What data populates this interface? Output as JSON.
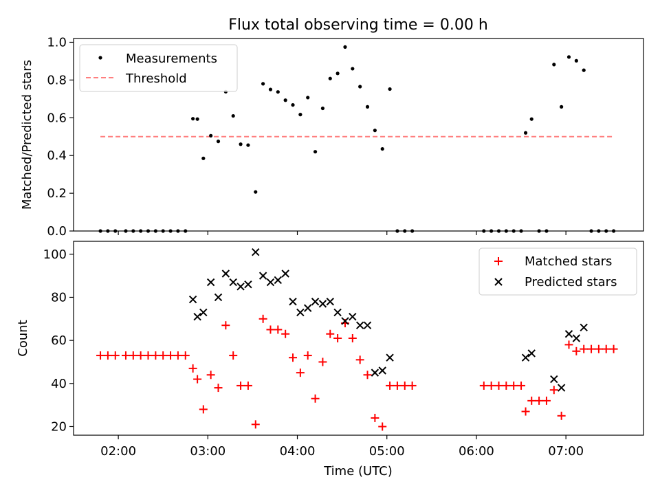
{
  "chart_data": [
    {
      "type": "scatter",
      "title": "Flux total observing time = 0.00 h",
      "xlabel": "",
      "ylabel": "Matched/Predicted stars",
      "x_is_time": true,
      "xlim": [
        "01:30",
        "07:52"
      ],
      "ylim": [
        0,
        1.02
      ],
      "yticks": [
        0,
        0.2,
        0.4,
        0.6,
        0.8,
        1.0
      ],
      "yticklabels": [
        "0.0",
        "0.2",
        "0.4",
        "0.6",
        "0.8",
        "1.0"
      ],
      "grid": false,
      "legend_position": "upper left",
      "series": [
        {
          "name": "Measurements",
          "marker": "dot",
          "color": "#000000",
          "points": [
            [
              "01:48",
              0.0
            ],
            [
              "01:53",
              0.0
            ],
            [
              "01:58",
              0.0
            ],
            [
              "02:05",
              0.0
            ],
            [
              "02:10",
              0.0
            ],
            [
              "02:15",
              0.0
            ],
            [
              "02:20",
              0.0
            ],
            [
              "02:25",
              0.0
            ],
            [
              "02:30",
              0.0
            ],
            [
              "02:35",
              0.0
            ],
            [
              "02:40",
              0.0
            ],
            [
              "02:45",
              0.0
            ],
            [
              "02:50",
              0.595
            ],
            [
              "02:53",
              0.593
            ],
            [
              "02:57",
              0.385
            ],
            [
              "03:02",
              0.505
            ],
            [
              "03:07",
              0.475
            ],
            [
              "03:12",
              0.738
            ],
            [
              "03:17",
              0.61
            ],
            [
              "03:22",
              0.46
            ],
            [
              "03:27",
              0.455
            ],
            [
              "03:32",
              0.207
            ],
            [
              "03:37",
              0.78
            ],
            [
              "03:42",
              0.75
            ],
            [
              "03:47",
              0.737
            ],
            [
              "03:52",
              0.693
            ],
            [
              "03:57",
              0.668
            ],
            [
              "04:02",
              0.617
            ],
            [
              "04:07",
              0.707
            ],
            [
              "04:12",
              0.42
            ],
            [
              "04:17",
              0.65
            ],
            [
              "04:22",
              0.808
            ],
            [
              "04:27",
              0.835
            ],
            [
              "04:32",
              0.975
            ],
            [
              "04:37",
              0.86
            ],
            [
              "04:42",
              0.765
            ],
            [
              "04:47",
              0.658
            ],
            [
              "04:52",
              0.533
            ],
            [
              "04:57",
              0.435
            ],
            [
              "05:02",
              0.752
            ],
            [
              "05:07",
              0.0
            ],
            [
              "05:12",
              0.0
            ],
            [
              "05:17",
              0.0
            ],
            [
              "06:05",
              0.0
            ],
            [
              "06:10",
              0.0
            ],
            [
              "06:15",
              0.0
            ],
            [
              "06:20",
              0.0
            ],
            [
              "06:25",
              0.0
            ],
            [
              "06:30",
              0.0
            ],
            [
              "06:33",
              0.52
            ],
            [
              "06:37",
              0.593
            ],
            [
              "06:42",
              0.0
            ],
            [
              "06:47",
              0.0
            ],
            [
              "06:52",
              0.882
            ],
            [
              "06:57",
              0.658
            ],
            [
              "07:02",
              0.922
            ],
            [
              "07:07",
              0.902
            ],
            [
              "07:12",
              0.852
            ],
            [
              "07:17",
              0.0
            ],
            [
              "07:22",
              0.0
            ],
            [
              "07:27",
              0.0
            ],
            [
              "07:32",
              0.0
            ]
          ]
        },
        {
          "name": "Threshold",
          "line_style": "dashed",
          "color": "#ff7f7f",
          "x": [
            "01:48",
            "07:32"
          ],
          "y": [
            0.5,
            0.5
          ]
        }
      ]
    },
    {
      "type": "scatter",
      "title": "",
      "xlabel": "Time (UTC)",
      "ylabel": "Count",
      "x_is_time": true,
      "xlim": [
        "01:30",
        "07:52"
      ],
      "ylim": [
        16,
        106
      ],
      "xticks": [
        "02:00",
        "03:00",
        "04:00",
        "05:00",
        "06:00",
        "07:00"
      ],
      "yticks": [
        20,
        40,
        60,
        80,
        100
      ],
      "grid": false,
      "legend_position": "upper right",
      "series": [
        {
          "name": "Matched stars",
          "marker": "+",
          "color": "#ff0000",
          "points": [
            [
              "01:48",
              53
            ],
            [
              "01:53",
              53
            ],
            [
              "01:58",
              53
            ],
            [
              "02:05",
              53
            ],
            [
              "02:10",
              53
            ],
            [
              "02:15",
              53
            ],
            [
              "02:20",
              53
            ],
            [
              "02:25",
              53
            ],
            [
              "02:30",
              53
            ],
            [
              "02:35",
              53
            ],
            [
              "02:40",
              53
            ],
            [
              "02:45",
              53
            ],
            [
              "02:50",
              47
            ],
            [
              "02:53",
              42
            ],
            [
              "02:57",
              28
            ],
            [
              "03:02",
              44
            ],
            [
              "03:07",
              38
            ],
            [
              "03:12",
              67
            ],
            [
              "03:17",
              53
            ],
            [
              "03:22",
              39
            ],
            [
              "03:27",
              39
            ],
            [
              "03:32",
              21
            ],
            [
              "03:37",
              70
            ],
            [
              "03:42",
              65
            ],
            [
              "03:47",
              65
            ],
            [
              "03:52",
              63
            ],
            [
              "03:57",
              52
            ],
            [
              "04:02",
              45
            ],
            [
              "04:07",
              53
            ],
            [
              "04:12",
              33
            ],
            [
              "04:17",
              50
            ],
            [
              "04:22",
              63
            ],
            [
              "04:27",
              61
            ],
            [
              "04:32",
              68
            ],
            [
              "04:37",
              61
            ],
            [
              "04:42",
              51
            ],
            [
              "04:47",
              44
            ],
            [
              "04:52",
              24
            ],
            [
              "04:57",
              20
            ],
            [
              "05:02",
              39
            ],
            [
              "05:07",
              39
            ],
            [
              "05:12",
              39
            ],
            [
              "05:17",
              39
            ],
            [
              "06:05",
              39
            ],
            [
              "06:10",
              39
            ],
            [
              "06:15",
              39
            ],
            [
              "06:20",
              39
            ],
            [
              "06:25",
              39
            ],
            [
              "06:30",
              39
            ],
            [
              "06:33",
              27
            ],
            [
              "06:37",
              32
            ],
            [
              "06:42",
              32
            ],
            [
              "06:47",
              32
            ],
            [
              "06:52",
              37
            ],
            [
              "06:57",
              25
            ],
            [
              "07:02",
              58
            ],
            [
              "07:07",
              55
            ],
            [
              "07:12",
              56
            ],
            [
              "07:17",
              56
            ],
            [
              "07:22",
              56
            ],
            [
              "07:27",
              56
            ],
            [
              "07:32",
              56
            ]
          ]
        },
        {
          "name": "Predicted stars",
          "marker": "x",
          "color": "#000000",
          "points": [
            [
              "02:50",
              79
            ],
            [
              "02:53",
              71
            ],
            [
              "02:57",
              73
            ],
            [
              "03:02",
              87
            ],
            [
              "03:07",
              80
            ],
            [
              "03:12",
              91
            ],
            [
              "03:17",
              87
            ],
            [
              "03:22",
              85
            ],
            [
              "03:27",
              86
            ],
            [
              "03:32",
              101
            ],
            [
              "03:37",
              90
            ],
            [
              "03:42",
              87
            ],
            [
              "03:47",
              88
            ],
            [
              "03:52",
              91
            ],
            [
              "03:57",
              78
            ],
            [
              "04:02",
              73
            ],
            [
              "04:07",
              75
            ],
            [
              "04:12",
              78
            ],
            [
              "04:17",
              77
            ],
            [
              "04:22",
              78
            ],
            [
              "04:27",
              73
            ],
            [
              "04:32",
              69
            ],
            [
              "04:37",
              71
            ],
            [
              "04:42",
              67
            ],
            [
              "04:47",
              67
            ],
            [
              "04:52",
              45
            ],
            [
              "04:57",
              46
            ],
            [
              "05:02",
              52
            ],
            [
              "06:33",
              52
            ],
            [
              "06:37",
              54
            ],
            [
              "06:52",
              42
            ],
            [
              "06:57",
              38
            ],
            [
              "07:02",
              63
            ],
            [
              "07:07",
              61
            ],
            [
              "07:12",
              66
            ]
          ]
        }
      ]
    }
  ]
}
